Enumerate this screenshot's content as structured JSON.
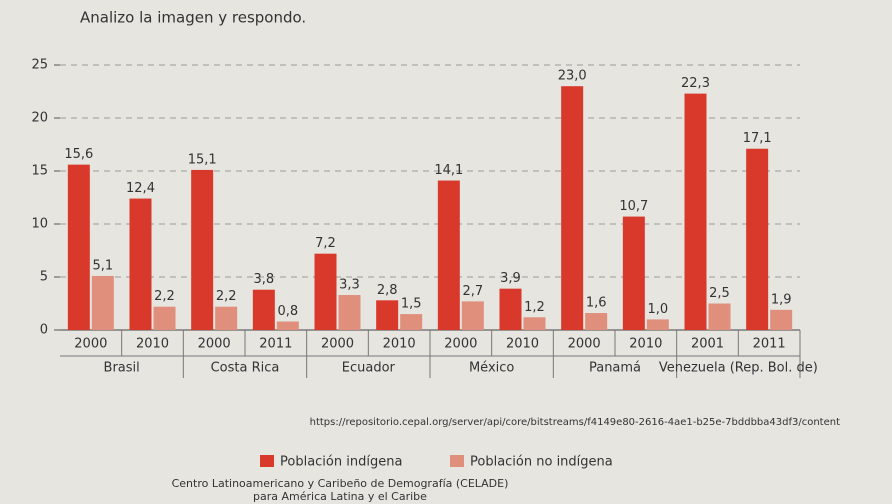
{
  "header": {
    "title": "Analizo la imagen y respondo."
  },
  "chart_data": {
    "type": "bar",
    "groups": [
      {
        "name": "Brasil",
        "categories": [
          "2000",
          "2010"
        ]
      },
      {
        "name": "Costa Rica",
        "categories": [
          "2000",
          "2011"
        ]
      },
      {
        "name": "Ecuador",
        "categories": [
          "2000",
          "2010"
        ]
      },
      {
        "name": "México",
        "categories": [
          "2000",
          "2010"
        ]
      },
      {
        "name": "Panamá",
        "categories": [
          "2000",
          "2010"
        ]
      },
      {
        "name": "Venezuela (Rep. Bol. de)",
        "categories": [
          "2001",
          "2011"
        ]
      }
    ],
    "series": [
      {
        "name": "Población indígena",
        "color": "#d8392b",
        "values": [
          15.6,
          12.4,
          15.1,
          3.8,
          7.2,
          2.8,
          14.1,
          3.9,
          23.0,
          10.7,
          22.3,
          17.1
        ],
        "value_labels": [
          "15,6",
          "12,4",
          "15,1",
          "3,8",
          "7,2",
          "2,8",
          "14,1",
          "3,9",
          "23,0",
          "10,7",
          "22,3",
          "17,1"
        ]
      },
      {
        "name": "Población no indígena",
        "color": "#df8f7c",
        "values": [
          5.1,
          2.2,
          2.2,
          0.8,
          3.3,
          1.5,
          2.7,
          1.2,
          1.6,
          1.0,
          2.5,
          1.9
        ],
        "value_labels": [
          "5,1",
          "2,2",
          "2,2",
          "0,8",
          "3,3",
          "1,5",
          "2,7",
          "1,2",
          "1,6",
          "1,0",
          "2,5",
          "1,9"
        ]
      }
    ],
    "ylim": [
      0,
      25
    ],
    "yticks": [
      0,
      5,
      10,
      15,
      20,
      25
    ],
    "grid": true,
    "source": "https://repositorio.cepal.org/server/api/core/bitstreams/f4149e80-2616-4ae1-b25e-7bddbba43df3/content",
    "legend": "bottom",
    "footnote": [
      "Centro Latinoamericano y Caribeño de Demografía (CELADE)",
      "para América Latina y el Caribe"
    ]
  }
}
